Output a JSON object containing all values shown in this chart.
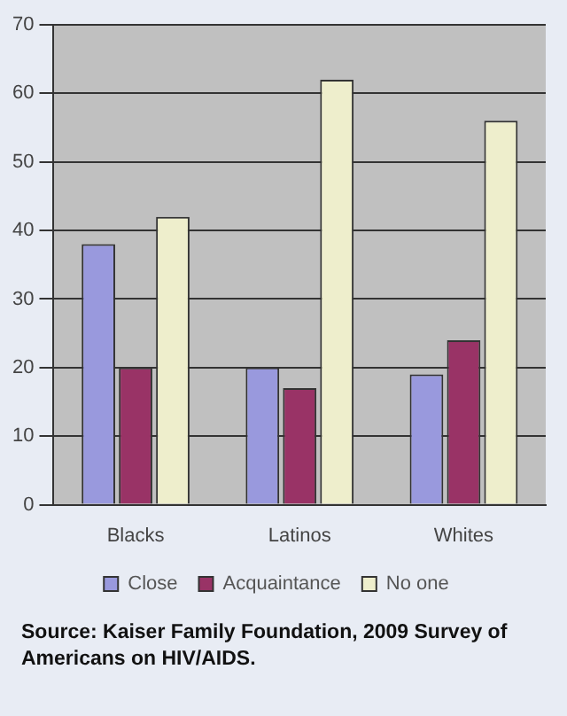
{
  "chart_data": {
    "type": "bar",
    "categories": [
      "Blacks",
      "Latinos",
      "Whites"
    ],
    "series": [
      {
        "name": "Close",
        "color": "#9999dd",
        "values": [
          38,
          20,
          19
        ]
      },
      {
        "name": "Acquaintance",
        "color": "#993366",
        "values": [
          20,
          17,
          24
        ]
      },
      {
        "name": "No one",
        "color": "#eeeecc",
        "values": [
          42,
          62,
          56
        ]
      }
    ],
    "ylim": [
      0,
      70
    ],
    "yticks": [
      0,
      10,
      20,
      30,
      40,
      50,
      60,
      70
    ],
    "grid": "y",
    "legend": "bottom",
    "annotations": [
      "Source: Kaiser Family Foundation, 2009 Survey of Americans on HIV/AIDS."
    ]
  }
}
